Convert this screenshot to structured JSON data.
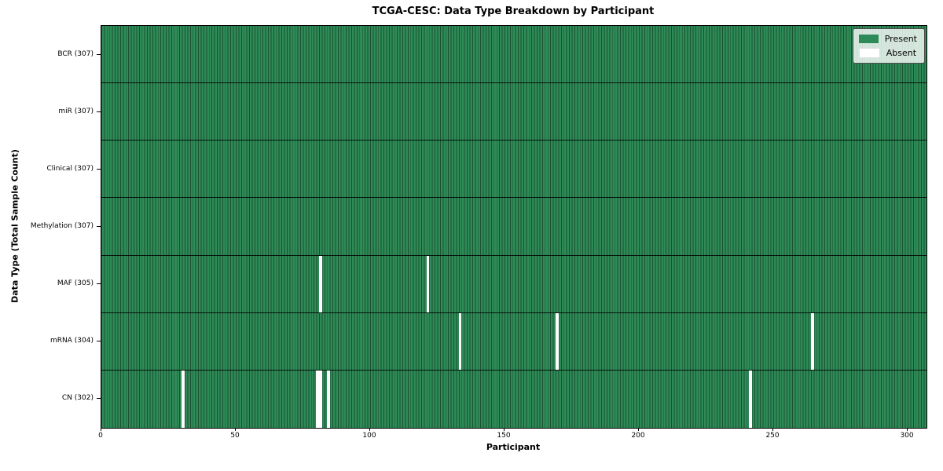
{
  "figure": {
    "title": "TCGA-CESC: Data Type Breakdown by Participant",
    "xlabel": "Participant",
    "ylabel": "Data Type (Total Sample Count)"
  },
  "chart_data": {
    "type": "heatmap",
    "title": "TCGA-CESC: Data Type Breakdown by Participant",
    "xlabel": "Participant",
    "ylabel": "Data Type (Total Sample Count)",
    "grid": "per-cell vertical lines and per-row horizontal separators",
    "legend_position": "upper right",
    "x_axis": {
      "min": 0,
      "max": 307,
      "ticks": [
        0,
        50,
        100,
        150,
        200,
        250,
        300
      ]
    },
    "n_participants": 307,
    "colors": {
      "present": "#2e8b57",
      "absent": "#ffffff",
      "cell_edge": "#1b5133",
      "row_separator": "#111111",
      "plot_border": "#000000",
      "legend_border": "#4d4d4d"
    },
    "legend": {
      "entries": [
        {
          "label": "Present",
          "color": "#2e8b57"
        },
        {
          "label": "Absent",
          "color": "#ffffff"
        }
      ]
    },
    "rows": [
      {
        "label": "BCR (307)",
        "data_type": "BCR",
        "total_samples": 307,
        "absent_participants": []
      },
      {
        "label": "miR (307)",
        "data_type": "miR",
        "total_samples": 307,
        "absent_participants": []
      },
      {
        "label": "Clinical (307)",
        "data_type": "Clinical",
        "total_samples": 307,
        "absent_participants": []
      },
      {
        "label": "Methylation (307)",
        "data_type": "Methylation",
        "total_samples": 307,
        "absent_participants": []
      },
      {
        "label": "MAF (305)",
        "data_type": "MAF",
        "total_samples": 305,
        "absent_participants": [
          81,
          121
        ]
      },
      {
        "label": "mRNA (304)",
        "data_type": "mRNA",
        "total_samples": 304,
        "absent_participants": [
          133,
          169,
          264
        ]
      },
      {
        "label": "CN (302)",
        "data_type": "CN",
        "total_samples": 302,
        "absent_participants": [
          30,
          80,
          81,
          84,
          241
        ]
      }
    ]
  }
}
